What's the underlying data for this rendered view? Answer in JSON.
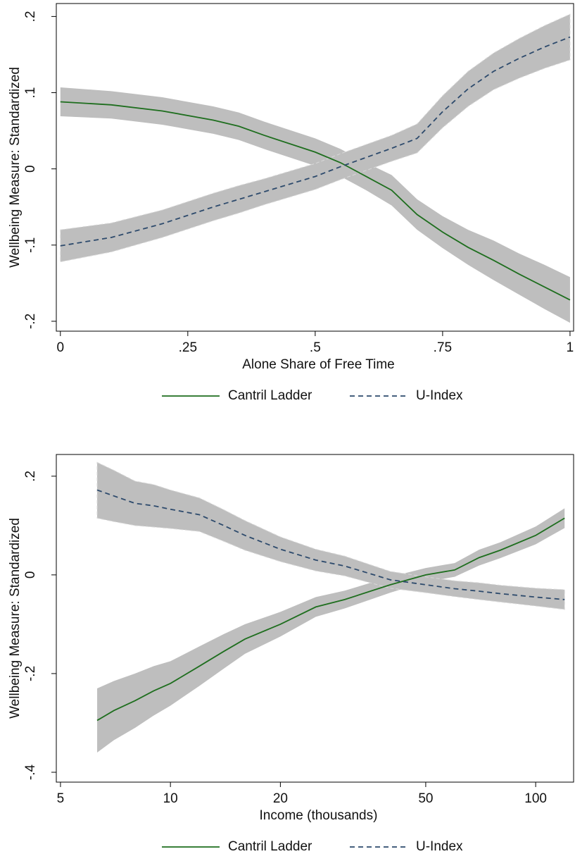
{
  "chart_data": [
    {
      "type": "line",
      "x_label": "Alone Share of Free Time",
      "y_label": "Wellbeing Measure: Standardized",
      "x_scale": "linear",
      "legend": "bottom",
      "band_color": "#bebebe",
      "x": [
        0,
        0.1,
        0.2,
        0.3,
        0.35,
        0.4,
        0.5,
        0.55,
        0.6,
        0.65,
        0.7,
        0.75,
        0.8,
        0.85,
        0.9,
        0.95,
        1
      ],
      "xlim": [
        -0.008,
        1.007
      ],
      "xticks": [
        0,
        {
          "value": 0.25,
          "label": ".25"
        },
        {
          "value": 0.5,
          "label": ".5"
        },
        {
          "value": 0.75,
          "label": ".75"
        },
        1
      ],
      "ylim": [
        -0.213,
        0.217
      ],
      "yticks": [
        {
          "value": -0.2,
          "label": "-.2"
        },
        {
          "value": -0.1,
          "label": "-.1"
        },
        0,
        {
          "value": 0.1,
          "label": ".1"
        },
        {
          "value": 0.2,
          "label": ".2"
        }
      ],
      "series": [
        {
          "name": "Cantril Ladder",
          "color": "#1e6e1e",
          "dashed": false,
          "values": [
            0.088,
            0.084,
            0.076,
            0.064,
            0.056,
            0.044,
            0.022,
            0.008,
            -0.01,
            -0.028,
            -0.06,
            -0.083,
            -0.103,
            -0.12,
            -0.138,
            -0.155,
            -0.172
          ],
          "lower": [
            0.069,
            0.066,
            0.058,
            0.046,
            0.038,
            0.026,
            0.004,
            -0.01,
            -0.028,
            -0.048,
            -0.08,
            -0.104,
            -0.126,
            -0.146,
            -0.165,
            -0.184,
            -0.202
          ],
          "upper": [
            0.107,
            0.102,
            0.094,
            0.082,
            0.074,
            0.062,
            0.04,
            0.026,
            0.008,
            -0.008,
            -0.04,
            -0.062,
            -0.08,
            -0.094,
            -0.111,
            -0.126,
            -0.142
          ]
        },
        {
          "name": "U-Index",
          "color": "#2d4a6c",
          "dashed": true,
          "values": [
            -0.101,
            -0.09,
            -0.072,
            -0.05,
            -0.04,
            -0.03,
            -0.01,
            0.003,
            0.015,
            0.027,
            0.04,
            0.075,
            0.105,
            0.128,
            0.145,
            0.16,
            0.173
          ],
          "lower": [
            -0.122,
            -0.109,
            -0.09,
            -0.068,
            -0.058,
            -0.047,
            -0.027,
            -0.014,
            -0.002,
            0.01,
            0.021,
            0.054,
            0.082,
            0.104,
            0.119,
            0.132,
            0.143
          ],
          "upper": [
            -0.08,
            -0.071,
            -0.054,
            -0.032,
            -0.022,
            -0.013,
            0.007,
            0.02,
            0.032,
            0.044,
            0.059,
            0.096,
            0.128,
            0.152,
            0.171,
            0.188,
            0.203
          ]
        }
      ]
    },
    {
      "type": "line",
      "x_label": "Income (thousands)",
      "y_label": "Wellbeing Measure: Standardized",
      "x_scale": "log",
      "legend": "bottom",
      "band_color": "#bebebe",
      "x": [
        6.3,
        7,
        8,
        9,
        10,
        12,
        14,
        16,
        20,
        25,
        30,
        40,
        50,
        60,
        70,
        80,
        100,
        120
      ],
      "xlim": [
        4.87,
        127
      ],
      "xticks": [
        5,
        10,
        20,
        50,
        100
      ],
      "ylim": [
        -0.42,
        0.244
      ],
      "yticks": [
        {
          "value": -0.4,
          "label": "-.4"
        },
        {
          "value": -0.2,
          "label": "-.2"
        },
        0,
        {
          "value": 0.2,
          "label": ".2"
        }
      ],
      "series": [
        {
          "name": "Cantril Ladder",
          "color": "#1e6e1e",
          "dashed": false,
          "values": [
            -0.295,
            -0.275,
            -0.255,
            -0.235,
            -0.22,
            -0.185,
            -0.155,
            -0.13,
            -0.1,
            -0.065,
            -0.05,
            -0.02,
            0.0,
            0.01,
            0.035,
            0.05,
            0.08,
            0.115
          ],
          "lower": [
            -0.36,
            -0.335,
            -0.31,
            -0.285,
            -0.265,
            -0.225,
            -0.19,
            -0.16,
            -0.125,
            -0.085,
            -0.068,
            -0.036,
            -0.014,
            -0.004,
            0.019,
            0.034,
            0.062,
            0.095
          ],
          "upper": [
            -0.23,
            -0.215,
            -0.2,
            -0.185,
            -0.175,
            -0.145,
            -0.12,
            -0.1,
            -0.075,
            -0.045,
            -0.032,
            -0.004,
            0.014,
            0.024,
            0.051,
            0.066,
            0.098,
            0.135
          ]
        },
        {
          "name": "U-Index",
          "color": "#2d4a6c",
          "dashed": true,
          "values": [
            0.172,
            0.16,
            0.145,
            0.14,
            0.133,
            0.122,
            0.1,
            0.08,
            0.052,
            0.03,
            0.018,
            -0.01,
            -0.02,
            -0.028,
            -0.033,
            -0.038,
            -0.045,
            -0.05
          ],
          "lower": [
            0.115,
            0.108,
            0.1,
            0.097,
            0.094,
            0.088,
            0.068,
            0.05,
            0.027,
            0.008,
            -0.002,
            -0.027,
            -0.036,
            -0.044,
            -0.05,
            -0.055,
            -0.063,
            -0.07
          ],
          "upper": [
            0.228,
            0.212,
            0.19,
            0.183,
            0.172,
            0.156,
            0.132,
            0.11,
            0.077,
            0.052,
            0.038,
            0.007,
            -0.004,
            -0.012,
            -0.016,
            -0.021,
            -0.027,
            -0.03
          ]
        }
      ]
    }
  ]
}
